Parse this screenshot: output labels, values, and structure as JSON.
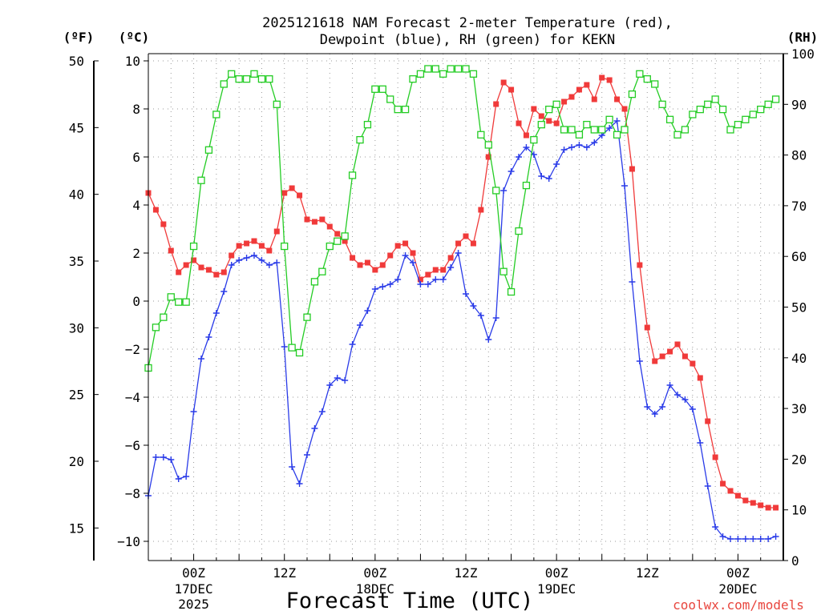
{
  "chart_data": {
    "type": "line",
    "title_line1": "2025121618 NAM Forecast 2-meter Temperature (red),",
    "title_line2": "Dewpoint (blue), RH (green) for KEKN",
    "xlabel": "Forecast Time (UTC)",
    "credit": "coolwx.com/models",
    "units": {
      "fahrenheit": "(ºF)",
      "celsius": "(ºC)",
      "rh": "(RH)"
    },
    "x_start_hour": 0,
    "x_end_hour": 84,
    "x_ticks": [
      {
        "hour": 6,
        "label": "00Z",
        "sub1": "17DEC",
        "sub2": "2025"
      },
      {
        "hour": 18,
        "label": "12Z",
        "sub1": "",
        "sub2": ""
      },
      {
        "hour": 30,
        "label": "00Z",
        "sub1": "18DEC",
        "sub2": ""
      },
      {
        "hour": 42,
        "label": "12Z",
        "sub1": "",
        "sub2": ""
      },
      {
        "hour": 54,
        "label": "00Z",
        "sub1": "19DEC",
        "sub2": ""
      },
      {
        "hour": 66,
        "label": "12Z",
        "sub1": "",
        "sub2": ""
      },
      {
        "hour": 78,
        "label": "00Z",
        "sub1": "20DEC",
        "sub2": ""
      }
    ],
    "celsius_axis": {
      "min": -10.8,
      "max": 10.3,
      "ticks": [
        -10,
        -8,
        -6,
        -4,
        -2,
        0,
        2,
        4,
        6,
        8,
        10
      ],
      "tick_labels": [
        "−10",
        "−8",
        "−6",
        "−4",
        "−2",
        "0",
        "2",
        "4",
        "6",
        "8",
        "10"
      ]
    },
    "fahrenheit_axis": {
      "ticks": [
        15,
        20,
        25,
        30,
        35,
        40,
        45,
        50
      ],
      "tick_labels": [
        "15",
        "20",
        "25",
        "30",
        "35",
        "40",
        "45",
        "50"
      ]
    },
    "rh_axis": {
      "min": 0,
      "max": 100,
      "ticks": [
        0,
        10,
        20,
        30,
        40,
        50,
        60,
        70,
        80,
        90,
        100
      ],
      "tick_labels": [
        "0",
        "10",
        "20",
        "30",
        "40",
        "50",
        "60",
        "70",
        "80",
        "90",
        "100"
      ]
    },
    "series": [
      {
        "name": "Temperature",
        "axis": "celsius",
        "color": "#f03a3a",
        "marker": "filled-square",
        "values": [
          4.5,
          3.8,
          3.2,
          2.1,
          1.2,
          1.5,
          1.7,
          1.4,
          1.3,
          1.1,
          1.2,
          1.9,
          2.3,
          2.4,
          2.5,
          2.3,
          2.1,
          2.9,
          4.5,
          4.7,
          4.4,
          3.4,
          3.3,
          3.4,
          3.1,
          2.8,
          2.5,
          1.8,
          1.5,
          1.6,
          1.3,
          1.5,
          1.9,
          2.3,
          2.4,
          2.0,
          0.9,
          1.1,
          1.3,
          1.3,
          1.8,
          2.4,
          2.7,
          2.4,
          3.8,
          6.0,
          8.2,
          9.1,
          8.8,
          7.4,
          6.9,
          8.0,
          7.7,
          7.5,
          7.4,
          8.3,
          8.5,
          8.8,
          9.0,
          8.4,
          9.3,
          9.2,
          8.4,
          8.0,
          5.5,
          1.5,
          -1.1,
          -2.5,
          -2.3,
          -2.1,
          -1.8,
          -2.3,
          -2.6,
          -3.2,
          -5.0,
          -6.5,
          -7.6,
          -7.9,
          -8.1,
          -8.3,
          -8.4,
          -8.5,
          -8.6,
          -8.6
        ]
      },
      {
        "name": "Dewpoint",
        "axis": "celsius",
        "color": "#2a3be8",
        "marker": "plus",
        "values": [
          -8.1,
          -6.5,
          -6.5,
          -6.6,
          -7.4,
          -7.3,
          -4.6,
          -2.4,
          -1.5,
          -0.5,
          0.4,
          1.5,
          1.7,
          1.8,
          1.9,
          1.7,
          1.5,
          1.6,
          -1.9,
          -6.9,
          -7.6,
          -6.4,
          -5.3,
          -4.6,
          -3.5,
          -3.2,
          -3.3,
          -1.8,
          -1.0,
          -0.4,
          0.5,
          0.6,
          0.7,
          0.9,
          1.9,
          1.6,
          0.7,
          0.7,
          0.9,
          0.9,
          1.4,
          2.0,
          0.3,
          -0.2,
          -0.6,
          -1.6,
          -0.7,
          4.6,
          5.4,
          6.0,
          6.4,
          6.1,
          5.2,
          5.1,
          5.7,
          6.3,
          6.4,
          6.5,
          6.4,
          6.6,
          6.9,
          7.2,
          7.5,
          4.8,
          0.8,
          -2.5,
          -4.4,
          -4.7,
          -4.4,
          -3.5,
          -3.9,
          -4.1,
          -4.5,
          -5.9,
          -7.7,
          -9.4,
          -9.8,
          -9.9,
          -9.9,
          -9.9,
          -9.9,
          -9.9,
          -9.9,
          -9.8
        ]
      },
      {
        "name": "RH",
        "axis": "rh",
        "color": "#24cc24",
        "marker": "open-square",
        "values": [
          38,
          46,
          48,
          52,
          51,
          51,
          62,
          75,
          81,
          88,
          94,
          96,
          95,
          95,
          96,
          95,
          95,
          90,
          62,
          42,
          41,
          48,
          55,
          57,
          62,
          63,
          64,
          76,
          83,
          86,
          93,
          93,
          91,
          89,
          89,
          95,
          96,
          97,
          97,
          96,
          97,
          97,
          97,
          96,
          84,
          82,
          73,
          57,
          53,
          65,
          74,
          83,
          86,
          89,
          90,
          85,
          85,
          84,
          86,
          85,
          85,
          87,
          84,
          85,
          92,
          96,
          95,
          94,
          90,
          87,
          84,
          85,
          88,
          89,
          90,
          91,
          89,
          85,
          86,
          87,
          88,
          89,
          90,
          91
        ]
      }
    ]
  }
}
